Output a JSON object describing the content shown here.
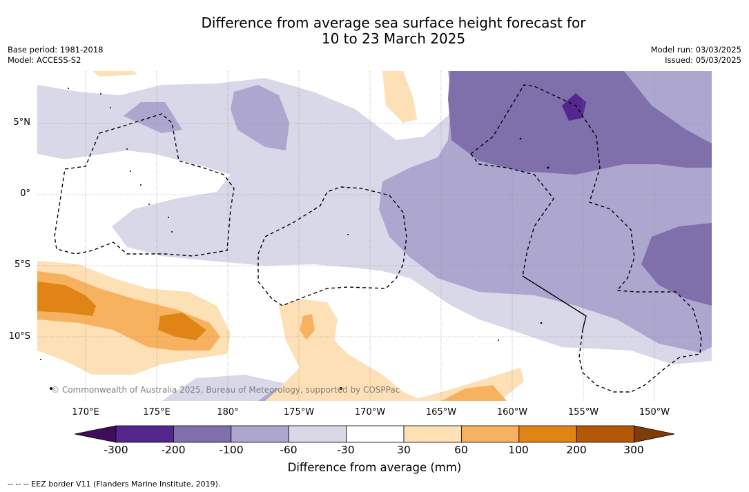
{
  "title_line1": "Difference from average sea surface height forecast for",
  "title_line2": "10 to 23 March 2025",
  "base_period": "Base period: 1981-2018",
  "model": "Model: ACCESS-S2",
  "model_run": "Model run: 03/03/2025",
  "issued": "Issued: 05/03/2025",
  "credit": "© Commonwealth of Australia 2025, Bureau of Meteorology, supported by COSPPac",
  "lat_labels": [
    "5°N",
    "0°",
    "5°S",
    "10°S"
  ],
  "lon_labels": [
    "170°E",
    "175°E",
    "180°",
    "175°W",
    "170°W",
    "165°W",
    "160°W",
    "155°W",
    "150°W"
  ],
  "colorbar": {
    "title": "Difference from average (mm)",
    "labels": [
      "-300",
      "-200",
      "-100",
      "-60",
      "-30",
      "30",
      "60",
      "100",
      "200",
      "300"
    ],
    "colors": [
      "#3f0d5a",
      "#54278f",
      "#7f6fab",
      "#ada6cf",
      "#d8d8e9",
      "#ffffff",
      "#fde0b5",
      "#f7b25f",
      "#e08515",
      "#b35806",
      "#7f3b08"
    ]
  },
  "footer": "-- -- -- EEZ border V11 (Flanders Marine Institute, 2019)."
}
